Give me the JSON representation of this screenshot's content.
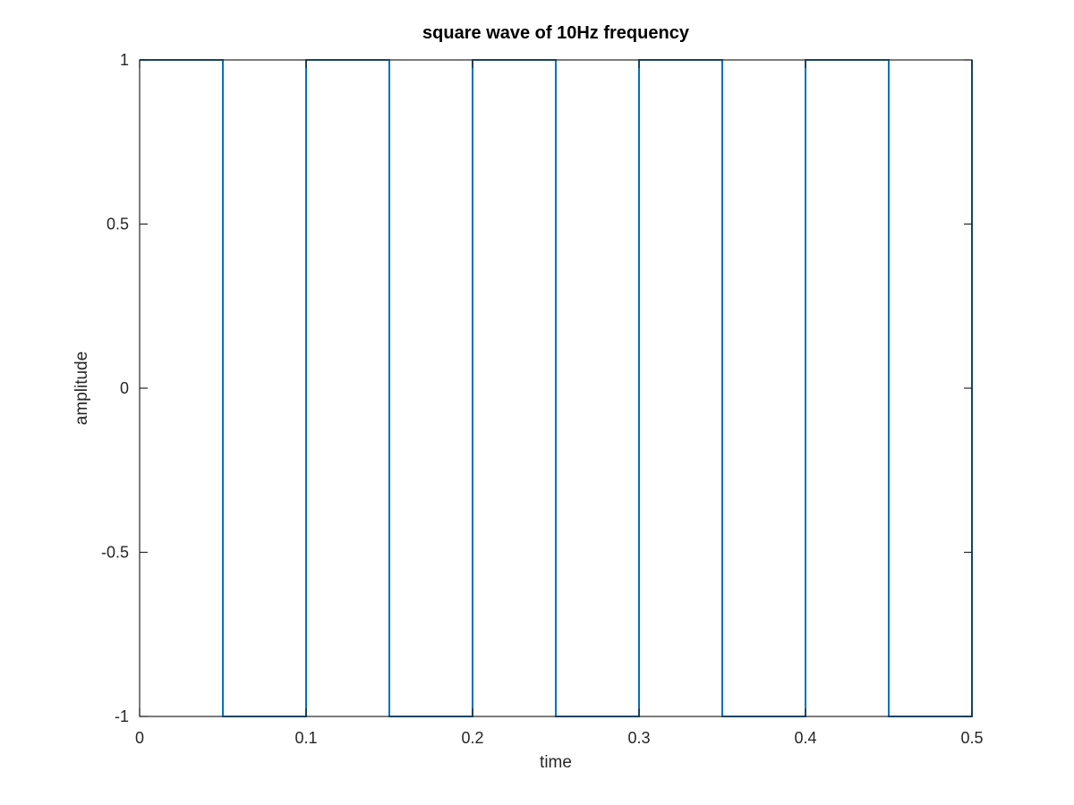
{
  "chart_data": {
    "type": "line",
    "title": "square wave of 10Hz frequency",
    "xlabel": "time",
    "ylabel": "amplitude",
    "xlim": [
      0,
      0.5
    ],
    "ylim": [
      -1,
      1
    ],
    "x_ticks": [
      0,
      0.1,
      0.2,
      0.3,
      0.4,
      0.5
    ],
    "x_tick_labels": [
      "0",
      "0.1",
      "0.2",
      "0.3",
      "0.4",
      "0.5"
    ],
    "y_ticks": [
      -1,
      -0.5,
      0,
      0.5,
      1
    ],
    "y_tick_labels": [
      "-1",
      "-0.5",
      "0",
      "0.5",
      "1"
    ],
    "grid": false,
    "box": true,
    "colors": {
      "series": "#0072bd",
      "axes": "#262626",
      "background": "#ffffff"
    },
    "series": [
      {
        "x": [
          0,
          0.05,
          0.05,
          0.1,
          0.1,
          0.15,
          0.15,
          0.2,
          0.2,
          0.25,
          0.25,
          0.3,
          0.3,
          0.35,
          0.35,
          0.4,
          0.4,
          0.45,
          0.45,
          0.5,
          0.5
        ],
        "y": [
          1,
          1,
          -1,
          -1,
          1,
          1,
          -1,
          -1,
          1,
          1,
          -1,
          -1,
          1,
          1,
          -1,
          -1,
          1,
          1,
          -1,
          -1,
          1
        ]
      }
    ]
  }
}
